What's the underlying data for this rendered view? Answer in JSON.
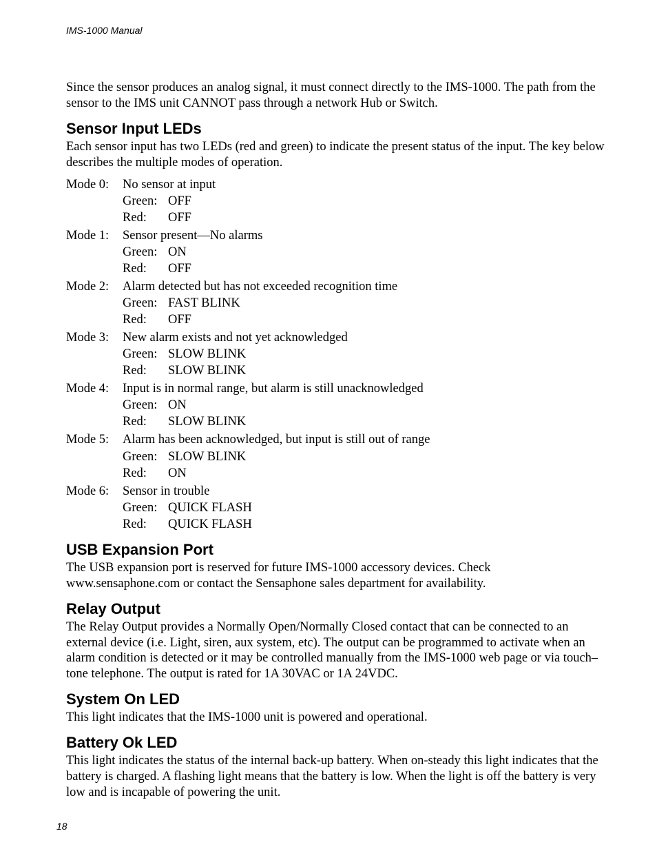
{
  "header": {
    "title": "IMS-1000 Manual"
  },
  "intro_para": " Since the sensor produces an analog signal, it must connect directly to the IMS-1000.  The path from the sensor to the IMS unit CANNOT pass through a network Hub or Switch.",
  "sensor_input_leds": {
    "heading": "Sensor Input LEDs",
    "para": "Each sensor input has two LEDs (red and green) to indicate the present status of the input.  The key below describes the multiple modes of operation.",
    "modes": [
      {
        "label": "Mode 0:",
        "desc": "No sensor at input",
        "green_label": "Green:",
        "green_state": "OFF",
        "red_label": "Red:",
        "red_state": "OFF"
      },
      {
        "label": "Mode 1:",
        "desc": "Sensor present—No alarms",
        "green_label": "Green:",
        "green_state": "ON",
        "red_label": "Red:",
        "red_state": "OFF"
      },
      {
        "label": "Mode 2:",
        "desc": "Alarm detected but has not exceeded recognition time",
        "green_label": "Green:",
        "green_state": "FAST BLINK",
        "red_label": "Red:",
        "red_state": "OFF"
      },
      {
        "label": "Mode 3:",
        "desc": "New alarm exists and not yet acknowledged",
        "green_label": "Green:",
        "green_state": "SLOW BLINK",
        "red_label": "Red:",
        "red_state": "SLOW BLINK"
      },
      {
        "label": "Mode 4:",
        "desc": "Input is in normal range, but alarm is still unacknowledged",
        "green_label": "Green:",
        "green_state": "ON",
        "red_label": "Red:",
        "red_state": "SLOW BLINK"
      },
      {
        "label": "Mode 5:",
        "desc": "Alarm has been acknowledged, but input is still out of range",
        "green_label": "Green:",
        "green_state": "SLOW BLINK",
        "red_label": "Red:",
        "red_state": "ON"
      },
      {
        "label": "Mode 6:",
        "desc": "Sensor in trouble",
        "green_label": "Green:",
        "green_state": "QUICK FLASH",
        "red_label": "Red:",
        "red_state": "QUICK FLASH"
      }
    ]
  },
  "usb_expansion": {
    "heading": "USB Expansion Port",
    "para": "The USB expansion port is reserved for future IMS-1000 accessory devices. Check www.sensaphone.com or contact the Sensaphone sales department for availability."
  },
  "relay_output": {
    "heading": "Relay Output",
    "para": "The Relay Output provides a Normally Open/Normally Closed contact that can be connected to an external device (i.e. Light, siren, aux system, etc). The output can be programmed to activate when an alarm condition is detected or it may be controlled manually from the IMS-1000 web page or via touch–tone telephone. The output is rated for 1A 30VAC or 1A 24VDC."
  },
  "system_on_led": {
    "heading": "System On LED",
    "para": "This light indicates that the IMS-1000 unit is powered and operational."
  },
  "battery_ok_led": {
    "heading": "Battery Ok LED",
    "para": "This light indicates the status of the internal back-up battery. When on-steady this light indicates that the battery is charged. A flashing light means that the battery is low. When the light is off the battery is very low and is incapable of powering the unit."
  },
  "page_number": "18"
}
